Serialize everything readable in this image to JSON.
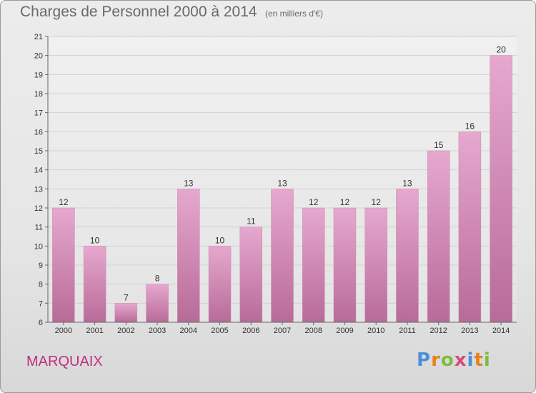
{
  "header": {
    "title": "Charges de Personnel 2000 à 2014",
    "unit": "(en milliers d'€)"
  },
  "footer": {
    "commune": "MARQUAIX",
    "brand": "Proxiti",
    "brand_colors": [
      "#4a90d9",
      "#e8821e",
      "#7bbf3a",
      "#d94a7a",
      "#4a90d9",
      "#e8821e",
      "#7bbf3a"
    ]
  },
  "chart_data": {
    "type": "bar",
    "title": "Charges de Personnel 2000 à 2014",
    "subtitle": "(en milliers d'€)",
    "categories": [
      "2000",
      "2001",
      "2002",
      "2003",
      "2004",
      "2005",
      "2006",
      "2007",
      "2008",
      "2009",
      "2010",
      "2011",
      "2012",
      "2013",
      "2014"
    ],
    "values": [
      12,
      10,
      7,
      8,
      13,
      10,
      11,
      13,
      12,
      12,
      12,
      13,
      15,
      16,
      20
    ],
    "ylim": [
      6,
      21
    ],
    "yticks": [
      6,
      7,
      8,
      9,
      10,
      11,
      12,
      13,
      14,
      15,
      16,
      17,
      18,
      19,
      20,
      21
    ],
    "grid": true,
    "bar_color_top": "#e6a8cf",
    "bar_color_bottom": "#b86b98"
  }
}
